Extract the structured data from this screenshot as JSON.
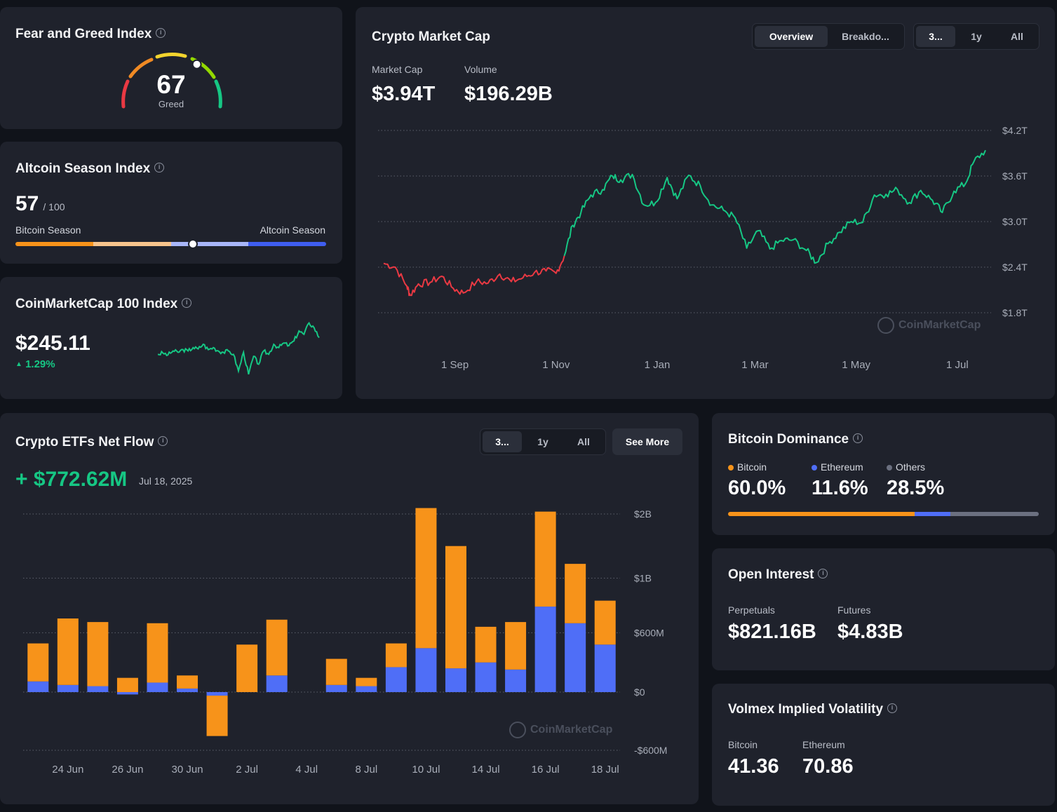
{
  "colors": {
    "background": "#10131a",
    "card": "#1f222c",
    "green": "#16c784",
    "red": "#ea3943",
    "orange": "#f7931a",
    "blue": "#4f6ef7",
    "gray": "#6b7080"
  },
  "fear_greed": {
    "title": "Fear and Greed Index",
    "value": "67",
    "label": "Greed",
    "level": 67,
    "info_icon": "info-icon"
  },
  "altcoin_season": {
    "title": "Altcoin Season Index",
    "value": "57",
    "max": "/ 100",
    "left_label": "Bitcoin Season",
    "right_label": "Altcoin Season",
    "level": 57
  },
  "cmc100": {
    "title": "CoinMarketCap 100 Index",
    "value": "$245.11",
    "change": "1.29%",
    "change_icon": "caret-up-icon"
  },
  "market_cap": {
    "title": "Crypto Market Cap",
    "tabs": [
      "Overview",
      "Breakdo..."
    ],
    "active_tab": "Overview",
    "ranges": [
      "3...",
      "1y",
      "All"
    ],
    "active_range": "3...",
    "market_cap_label": "Market Cap",
    "market_cap_value": "$3.94T",
    "volume_label": "Volume",
    "volume_value": "$196.29B",
    "watermark": "CoinMarketCap"
  },
  "etf": {
    "title": "Crypto ETFs Net Flow",
    "ranges": [
      "3...",
      "1y",
      "All"
    ],
    "active_range": "3...",
    "see_more": "See More",
    "value": "+ $772.62M",
    "date": "Jul 18, 2025",
    "watermark": "CoinMarketCap"
  },
  "dominance": {
    "title": "Bitcoin Dominance",
    "items": [
      {
        "name": "Bitcoin",
        "value": "60.0%",
        "pct": 60.0
      },
      {
        "name": "Ethereum",
        "value": "11.6%",
        "pct": 11.6
      },
      {
        "name": "Others",
        "value": "28.5%",
        "pct": 28.5
      }
    ]
  },
  "open_interest": {
    "title": "Open Interest",
    "perp_label": "Perpetuals",
    "perp_value": "$821.16B",
    "fut_label": "Futures",
    "fut_value": "$4.83B"
  },
  "volmex": {
    "title": "Volmex Implied Volatility",
    "btc_label": "Bitcoin",
    "btc_value": "41.36",
    "eth_label": "Ethereum",
    "eth_value": "70.86"
  },
  "chart_data": [
    {
      "type": "line",
      "title": "Crypto Market Cap",
      "xlabel": "",
      "ylabel": "",
      "x_ticks": [
        "1 Sep",
        "1 Nov",
        "1 Jan",
        "1 Mar",
        "1 May",
        "1 Jul"
      ],
      "y_ticks": [
        "$4.2T",
        "$3.6T",
        "$3.0T",
        "$2.4T",
        "$1.8T"
      ],
      "ylim": [
        1.8,
        4.2
      ],
      "grid": true,
      "x": [
        "2024-07-20",
        "2024-07-27",
        "2024-08-03",
        "2024-08-05",
        "2024-08-10",
        "2024-08-17",
        "2024-08-24",
        "2024-08-31",
        "2024-09-06",
        "2024-09-14",
        "2024-09-21",
        "2024-09-28",
        "2024-10-05",
        "2024-10-12",
        "2024-10-19",
        "2024-10-26",
        "2024-11-01",
        "2024-11-06",
        "2024-11-11",
        "2024-11-16",
        "2024-11-22",
        "2024-11-29",
        "2024-12-05",
        "2024-12-10",
        "2024-12-17",
        "2024-12-24",
        "2024-12-31",
        "2025-01-07",
        "2025-01-13",
        "2025-01-20",
        "2025-01-27",
        "2025-02-03",
        "2025-02-10",
        "2025-02-17",
        "2025-02-24",
        "2025-03-03",
        "2025-03-10",
        "2025-03-17",
        "2025-03-24",
        "2025-04-01",
        "2025-04-07",
        "2025-04-14",
        "2025-04-21",
        "2025-04-28",
        "2025-05-05",
        "2025-05-12",
        "2025-05-19",
        "2025-05-26",
        "2025-06-02",
        "2025-06-09",
        "2025-06-16",
        "2025-06-22",
        "2025-06-29",
        "2025-07-06",
        "2025-07-11",
        "2025-07-18"
      ],
      "values": [
        2.45,
        2.4,
        2.15,
        2.03,
        2.18,
        2.2,
        2.28,
        2.12,
        2.06,
        2.21,
        2.19,
        2.31,
        2.21,
        2.26,
        2.33,
        2.35,
        2.32,
        2.55,
        2.95,
        3.12,
        3.35,
        3.42,
        3.6,
        3.55,
        3.62,
        3.22,
        3.25,
        3.58,
        3.3,
        3.61,
        3.47,
        3.22,
        3.15,
        3.05,
        2.65,
        2.88,
        2.64,
        2.75,
        2.76,
        2.62,
        2.46,
        2.71,
        2.86,
        3.0,
        2.99,
        3.35,
        3.36,
        3.42,
        3.25,
        3.41,
        3.28,
        3.12,
        3.4,
        3.5,
        3.79,
        3.94
      ],
      "series_colors": {
        "down": "#ea3943",
        "up": "#16c784"
      }
    },
    {
      "type": "bar",
      "title": "Crypto ETFs Net Flow",
      "xlabel": "",
      "ylabel": "",
      "stacked": true,
      "categories": [
        "23 Jun",
        "24 Jun",
        "25 Jun",
        "26 Jun",
        "27 Jun",
        "30 Jun",
        "1 Jul",
        "2 Jul",
        "3 Jul",
        "4 Jul",
        "7 Jul",
        "8 Jul",
        "9 Jul",
        "10 Jul",
        "11 Jul",
        "14 Jul",
        "15 Jul",
        "16 Jul",
        "17 Jul",
        "18 Jul"
      ],
      "x_ticks": [
        "24 Jun",
        "26 Jun",
        "30 Jun",
        "2 Jul",
        "4 Jul",
        "8 Jul",
        "10 Jul",
        "14 Jul",
        "16 Jul",
        "18 Jul"
      ],
      "y_ticks": [
        "$2B",
        "$1B",
        "$600M",
        "$0",
        "-$600M"
      ],
      "ylim": [
        -600,
        1800
      ],
      "grid": true,
      "series": [
        {
          "color": "#f7931a",
          "values": [
            320,
            560,
            540,
            120,
            500,
            110,
            -340,
            400,
            470,
            0,
            220,
            70,
            200,
            1180,
            1030,
            300,
            400,
            800,
            500,
            370
          ]
        },
        {
          "color": "#4f6ef7",
          "values": [
            90,
            60,
            50,
            -20,
            80,
            30,
            -30,
            0,
            140,
            0,
            60,
            50,
            210,
            370,
            200,
            250,
            190,
            720,
            580,
            400
          ]
        }
      ]
    },
    {
      "type": "line",
      "title": "CoinMarketCap 100 Index",
      "xlabel": "",
      "ylabel": "",
      "values": [
        0.45,
        0.47,
        0.44,
        0.5,
        0.48,
        0.52,
        0.5,
        0.55,
        0.53,
        0.6,
        0.52,
        0.55,
        0.5,
        0.48,
        0.5,
        0.45,
        0.2,
        0.48,
        0.15,
        0.42,
        0.3,
        0.5,
        0.45,
        0.6,
        0.55,
        0.62,
        0.58,
        0.65,
        0.8,
        0.75,
        0.92,
        0.85,
        0.7
      ]
    }
  ]
}
